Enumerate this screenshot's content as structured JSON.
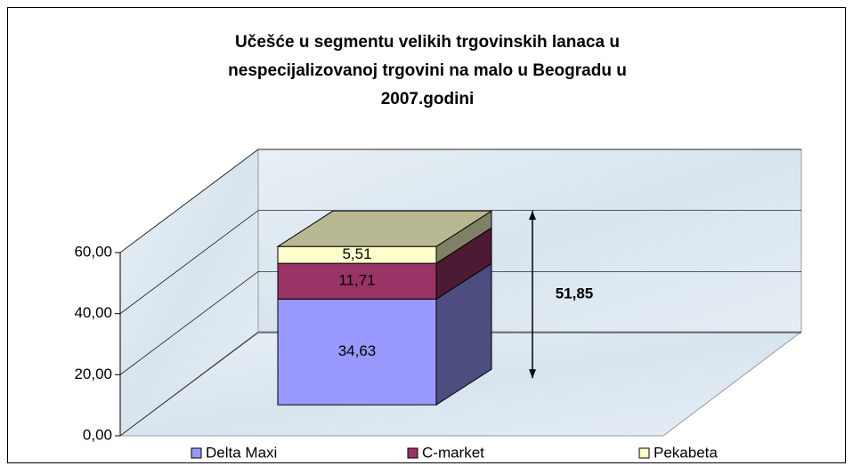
{
  "chart_data": {
    "type": "bar",
    "stacked": true,
    "title": [
      "Učešće u segmentu velikih trgovinskih lanaca u",
      "nespecijalizovanoj trgovini na malo u Beogradu u",
      "2007.godini"
    ],
    "categories": [
      null
    ],
    "series": [
      {
        "name": "Delta Maxi",
        "color": "#9999ff",
        "values": [
          34.63
        ],
        "value_labels": [
          "34,63"
        ]
      },
      {
        "name": "C-market",
        "color": "#993366",
        "values": [
          11.71
        ],
        "value_labels": [
          "11,71"
        ]
      },
      {
        "name": "Pekabeta",
        "color": "#ffffcc",
        "values": [
          5.51
        ],
        "value_labels": [
          "5,51"
        ]
      }
    ],
    "annotation": {
      "value": 51.85,
      "label": "51,85"
    },
    "ylim": [
      0,
      60
    ],
    "yticks": [
      {
        "value": 0,
        "label": "0,00"
      },
      {
        "value": 20,
        "label": "20,00"
      },
      {
        "value": 40,
        "label": "40,00"
      },
      {
        "value": 60,
        "label": "60,00"
      }
    ],
    "grid": true,
    "legend": "bottom"
  }
}
